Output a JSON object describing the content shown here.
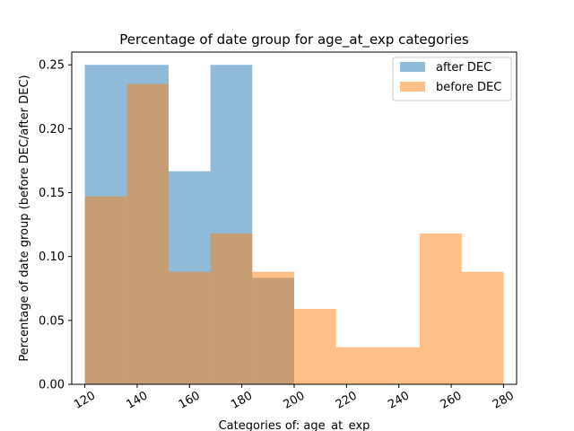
{
  "chart_data": {
    "type": "bar",
    "title": "Percentage of date group for age_at_exp categories",
    "xlabel": "Categories of: age_at_exp",
    "ylabel": "Percentage of date group (before DEC/after DEC)",
    "xlim": [
      115,
      285
    ],
    "ylim": [
      0,
      0.26
    ],
    "xticks": [
      "120",
      "140",
      "160",
      "180",
      "200",
      "220",
      "240",
      "260",
      "280"
    ],
    "yticks": [
      "0.00",
      "0.05",
      "0.10",
      "0.15",
      "0.20",
      "0.25"
    ],
    "grid": false,
    "legend_position": "top-right",
    "bin_edges": [
      120,
      136,
      152,
      168,
      184,
      200,
      216,
      232,
      248,
      264,
      280
    ],
    "series": [
      {
        "name": "after DEC",
        "color": "#1f77b4",
        "opacity": 0.5,
        "values": [
          0.25,
          0.25,
          0.1667,
          0.25,
          0.0833,
          0,
          0,
          0,
          0,
          0
        ]
      },
      {
        "name": "before DEC",
        "color": "#ff7f0e",
        "opacity": 0.5,
        "values": [
          0.147,
          0.235,
          0.088,
          0.118,
          0.088,
          0.059,
          0.029,
          0.029,
          0.118,
          0.088
        ]
      }
    ]
  }
}
